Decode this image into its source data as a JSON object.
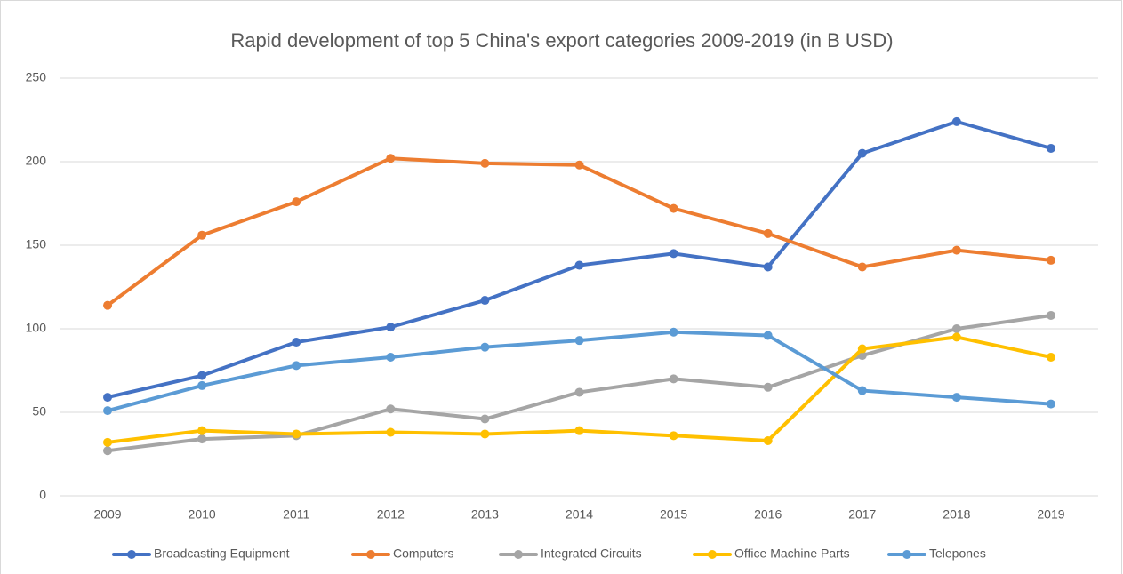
{
  "chart_data": {
    "type": "line",
    "title": "Rapid development of top 5 China's export categories 2009-2019 (in B USD)",
    "categories": [
      "2009",
      "2010",
      "2011",
      "2012",
      "2013",
      "2014",
      "2015",
      "2016",
      "2017",
      "2018",
      "2019"
    ],
    "series": [
      {
        "name": "Broadcasting Equipment",
        "color": "#4472c4",
        "values": [
          59,
          72,
          92,
          101,
          117,
          138,
          145,
          137,
          205,
          224,
          208
        ]
      },
      {
        "name": "Computers",
        "color": "#ed7d31",
        "values": [
          114,
          156,
          176,
          202,
          199,
          198,
          172,
          157,
          137,
          147,
          141
        ]
      },
      {
        "name": "Integrated Circuits",
        "color": "#a5a5a5",
        "values": [
          27,
          34,
          36,
          52,
          46,
          62,
          70,
          65,
          84,
          100,
          108
        ]
      },
      {
        "name": "Office Machine Parts",
        "color": "#ffc000",
        "values": [
          32,
          39,
          37,
          38,
          37,
          39,
          36,
          33,
          88,
          95,
          83
        ]
      },
      {
        "name": "Telepones",
        "color": "#5b9bd5",
        "values": [
          51,
          66,
          78,
          83,
          89,
          93,
          98,
          96,
          63,
          59,
          55
        ]
      }
    ],
    "ylim": [
      0,
      250
    ],
    "yticks": [
      0,
      50,
      100,
      150,
      200,
      250
    ],
    "grid": true,
    "legend": "bottom"
  }
}
